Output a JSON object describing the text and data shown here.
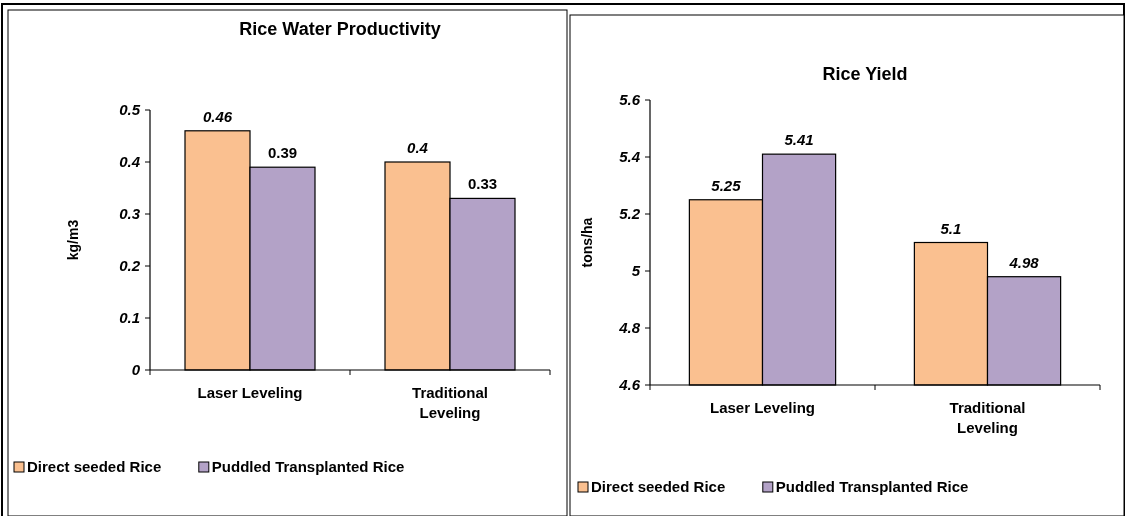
{
  "chart_data": [
    {
      "type": "bar",
      "title": "Rice Water Productivity",
      "ylabel": "kg/m3",
      "categories": [
        "Laser Leveling",
        "Traditional Leveling"
      ],
      "series": [
        {
          "name": "Direct seeded Rice",
          "color": "#fac090",
          "values": [
            0.46,
            0.4
          ]
        },
        {
          "name": "Puddled Transplanted Rice",
          "color": "#b3a2c7",
          "values": [
            0.39,
            0.33
          ]
        }
      ],
      "ylim": [
        0,
        0.5
      ],
      "yticks": [
        0,
        0.1,
        0.2,
        0.3,
        0.4,
        0.5
      ],
      "data_labels": true,
      "legend": "bottom",
      "grid": false
    },
    {
      "type": "bar",
      "title": "Rice Yield",
      "ylabel": "tons/ha",
      "categories": [
        "Laser Leveling",
        "Traditional Leveling"
      ],
      "series": [
        {
          "name": "Direct seeded Rice",
          "color": "#fac090",
          "values": [
            5.25,
            5.1
          ]
        },
        {
          "name": "Puddled Transplanted Rice",
          "color": "#b3a2c7",
          "values": [
            5.41,
            4.98
          ]
        }
      ],
      "ylim": [
        4.6,
        5.6
      ],
      "yticks": [
        4.6,
        4.8,
        5,
        5.2,
        5.4,
        5.6
      ],
      "data_labels": true,
      "legend": "bottom",
      "grid": false
    }
  ]
}
